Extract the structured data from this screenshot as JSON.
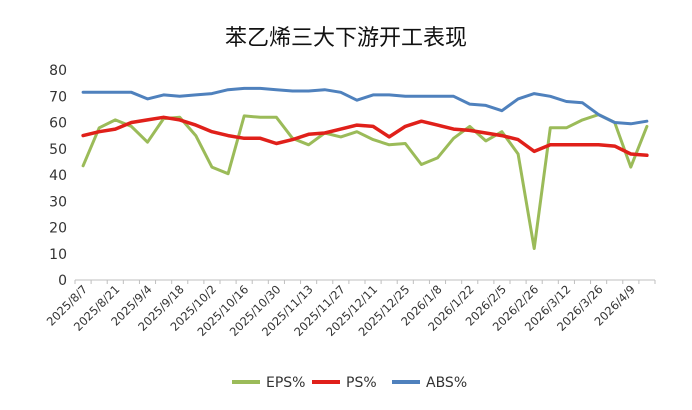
{
  "chart_data": {
    "type": "line",
    "title": "苯乙烯三大下游开工表现",
    "xlabel": "",
    "ylabel": "",
    "ylim": [
      0,
      80
    ],
    "y_ticks": [
      0,
      10,
      20,
      30,
      40,
      50,
      60,
      70,
      80
    ],
    "grid": false,
    "legend_position": "bottom",
    "x_tick_labels": [
      "2025/8/7",
      "2025/8/21",
      "2025/9/4",
      "2025/9/18",
      "2025/10/2",
      "2025/10/16",
      "2025/10/30",
      "2025/11/13",
      "2025/11/27",
      "2025/12/11",
      "2025/12/25",
      "2026/1/8",
      "2026/1/22",
      "2026/2/5",
      "2026/2/26",
      "2026/3/12",
      "2026/3/26",
      "2026/4/9"
    ],
    "series": [
      {
        "name": "EPS%",
        "color": "#9bbb59",
        "values": [
          43.5,
          58.0,
          61.0,
          58.5,
          52.5,
          61.5,
          62.0,
          55.0,
          43.0,
          40.5,
          62.5,
          62.0,
          62.0,
          54.0,
          51.5,
          56.0,
          54.5,
          56.5,
          53.5,
          51.5,
          52.0,
          44.0,
          46.5,
          54.0,
          58.5,
          53.0,
          56.5,
          48.0,
          12.0,
          58.0,
          58.0,
          61.0,
          63.0,
          60.0,
          43.0,
          58.5
        ]
      },
      {
        "name": "PS%",
        "color": "#e0201a",
        "values": [
          55.0,
          56.5,
          57.5,
          60.0,
          61.0,
          62.0,
          61.0,
          59.0,
          56.5,
          55.0,
          54.0,
          54.0,
          52.0,
          53.5,
          55.5,
          56.0,
          57.5,
          59.0,
          58.5,
          54.5,
          58.5,
          60.5,
          59.0,
          57.5,
          57.0,
          56.0,
          55.0,
          53.5,
          49.0,
          51.5,
          51.5,
          51.5,
          51.5,
          51.0,
          48.0,
          47.5
        ]
      },
      {
        "name": "ABS%",
        "color": "#4f81bd",
        "values": [
          71.5,
          71.5,
          71.5,
          71.5,
          69.0,
          70.5,
          70.0,
          70.5,
          71.0,
          72.5,
          73.0,
          73.0,
          72.5,
          72.0,
          72.0,
          72.5,
          71.5,
          68.5,
          70.5,
          70.5,
          70.0,
          70.0,
          70.0,
          70.0,
          67.0,
          66.5,
          64.5,
          69.0,
          71.0,
          70.0,
          68.0,
          67.5,
          63.0,
          60.0,
          59.5,
          60.5
        ]
      }
    ]
  }
}
